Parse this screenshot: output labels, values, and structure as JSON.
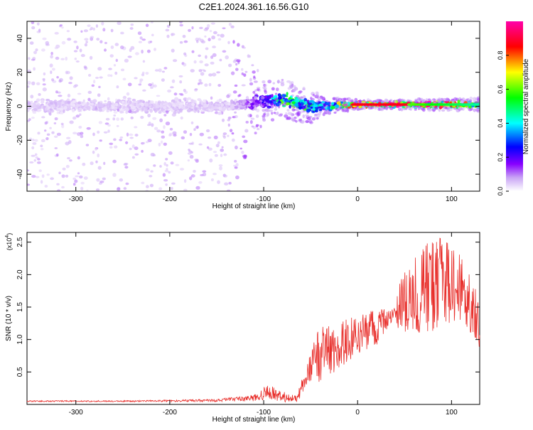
{
  "title": "C2E1.2024.361.16.56.G10",
  "chart_data": [
    {
      "type": "heatmap",
      "xlabel": "Height of straight line (km)",
      "ylabel": "Frequency (Hz)",
      "xlim": [
        -352,
        130
      ],
      "ylim": [
        -50,
        50
      ],
      "xticks": [
        -300,
        -200,
        -100,
        0,
        100
      ],
      "xtick_labels": [
        "-300",
        "-200",
        "-100",
        "0",
        "100"
      ],
      "yticks": [
        -40,
        -20,
        0,
        20,
        40
      ],
      "ytick_labels": [
        "-40",
        "-20",
        "0",
        "20",
        "40"
      ],
      "grid": false,
      "colorbar": {
        "label": "Normalized spectral amplitude",
        "range": [
          0,
          1
        ],
        "ticks": [
          0.0,
          0.2,
          0.4,
          0.6,
          0.8
        ],
        "tick_labels": [
          "0.0",
          "0.2",
          "0.4",
          "0.6",
          "0.8"
        ],
        "colors": [
          "#ffffff",
          "#8800ff",
          "#0000ff",
          "#00ffff",
          "#00ff00",
          "#ffff00",
          "#ff0000",
          "#ff00aa"
        ]
      },
      "description_points": [
        {
          "x": -350,
          "center_hz": 0,
          "spread_hz": 50,
          "amplitude": 0.05
        },
        {
          "x": -135,
          "center_hz": 0,
          "spread_hz": 50,
          "amplitude": 0.05
        },
        {
          "x": -100,
          "center_hz": 3,
          "spread_hz": 12,
          "amplitude": 0.2
        },
        {
          "x": -80,
          "center_hz": 4,
          "spread_hz": 12,
          "amplitude": 0.5
        },
        {
          "x": -50,
          "center_hz": 0,
          "spread_hz": 10,
          "amplitude": 0.45
        },
        {
          "x": -35,
          "center_hz": 0,
          "spread_hz": 5,
          "amplitude": 0.3
        },
        {
          "x": 0,
          "center_hz": 1,
          "spread_hz": 3,
          "amplitude": 0.9
        },
        {
          "x": 50,
          "center_hz": 1,
          "spread_hz": 3,
          "amplitude": 0.9
        },
        {
          "x": 130,
          "center_hz": 1,
          "spread_hz": 4,
          "amplitude": 0.6
        }
      ]
    },
    {
      "type": "line",
      "xlabel": "Height of straight line (km)",
      "ylabel": "SNR (10 * v/v)",
      "exponent_label": "(x10",
      "exponent_power": "4",
      "exponent_close": ")",
      "xlim": [
        -352,
        130
      ],
      "ylim": [
        0,
        2.65
      ],
      "xticks": [
        -300,
        -200,
        -100,
        0,
        100
      ],
      "xtick_labels": [
        "-300",
        "-200",
        "-100",
        "0",
        "100"
      ],
      "yticks": [
        0.5,
        1.0,
        1.5,
        2.0,
        2.5
      ],
      "ytick_labels": [
        "0.5",
        "1.0",
        "1.5",
        "2.0",
        "2.5"
      ],
      "grid": false,
      "series": [
        {
          "color": "#e8302c",
          "envelope_x": [
            -352,
            -250,
            -150,
            -110,
            -95,
            -80,
            -65,
            -50,
            -40,
            -25,
            -10,
            0,
            20,
            35,
            50,
            75,
            90,
            110,
            130
          ],
          "envelope_y": [
            0.05,
            0.05,
            0.06,
            0.1,
            0.2,
            0.12,
            0.08,
            0.55,
            0.8,
            0.8,
            1.0,
            1.05,
            1.2,
            1.35,
            1.6,
            1.8,
            1.9,
            1.8,
            1.25
          ],
          "amplitude_y": [
            0.01,
            0.01,
            0.02,
            0.05,
            0.12,
            0.08,
            0.06,
            0.25,
            0.45,
            0.4,
            0.35,
            0.3,
            0.3,
            0.1,
            0.5,
            0.7,
            0.7,
            0.5,
            0.4
          ]
        }
      ]
    }
  ]
}
